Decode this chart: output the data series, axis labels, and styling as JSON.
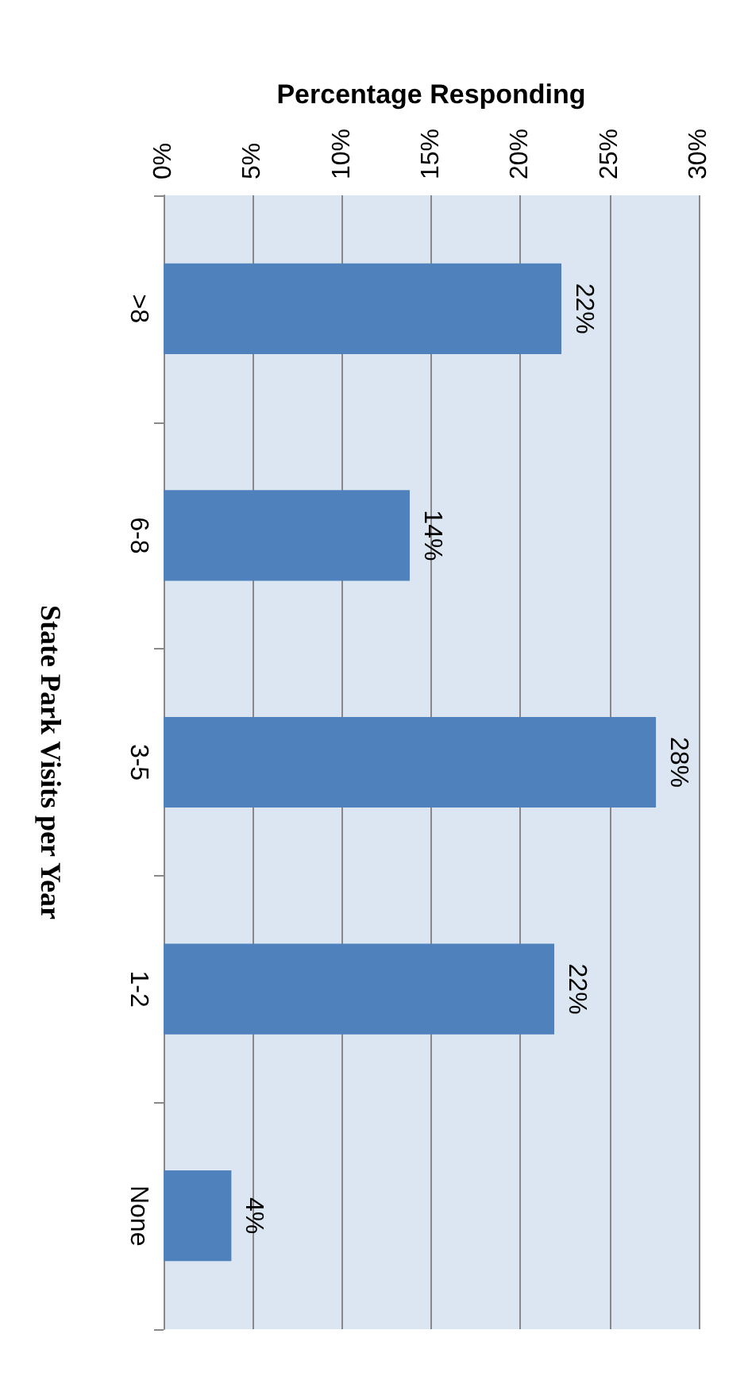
{
  "chart_data": {
    "type": "bar",
    "orientation": "horizontal",
    "xlabel": "Percentage Responding",
    "ylabel": "State Park Visits per Year",
    "categories": [
      ">8",
      "6-8",
      "3-5",
      "1-2",
      "None"
    ],
    "values": [
      22.3,
      13.8,
      27.6,
      21.9,
      3.8
    ],
    "value_labels": [
      "22%",
      "14%",
      "28%",
      "22%",
      "4%"
    ],
    "color": "#4f81bd",
    "xlim": [
      0,
      30
    ],
    "xticks": [
      {
        "value": 0,
        "label": "0%"
      },
      {
        "value": 5,
        "label": "5%"
      },
      {
        "value": 10,
        "label": "10%"
      },
      {
        "value": 15,
        "label": "15%"
      },
      {
        "value": 20,
        "label": "20%"
      },
      {
        "value": 25,
        "label": "25%"
      },
      {
        "value": 30,
        "label": "30%"
      }
    ],
    "grid": "x"
  }
}
